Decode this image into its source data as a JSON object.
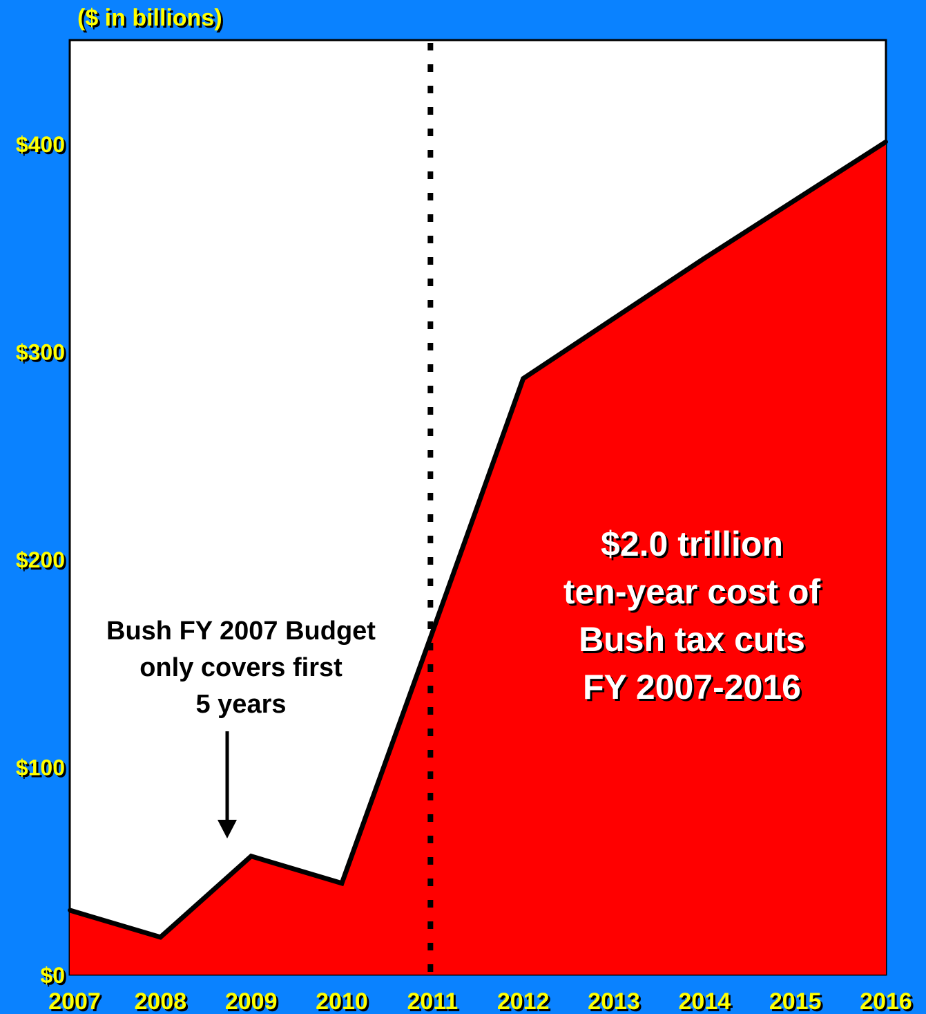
{
  "colors": {
    "background": "#0a82ff",
    "plot_background": "#ffffff",
    "area_fill": "#ff0000",
    "line": "#000000",
    "axis_text": "#ffff00",
    "annotation_text": "#ffffff",
    "note_text": "#000000"
  },
  "chart_data": {
    "type": "area",
    "title": "",
    "ylabel": "($ in billions)",
    "xlabel": "",
    "x": [
      "2007",
      "2008",
      "2009",
      "2010",
      "2011",
      "2012",
      "2013",
      "2014",
      "2015",
      "2016"
    ],
    "series": [
      {
        "values": [
          31,
          18,
          57,
          44,
          165,
          287,
          316,
          345,
          373,
          401
        ]
      }
    ],
    "ylim": [
      0,
      450
    ],
    "yticks": [
      {
        "value": 0,
        "label": "$0"
      },
      {
        "value": 100,
        "label": "$100"
      },
      {
        "value": 200,
        "label": "$200"
      },
      {
        "value": 300,
        "label": "$300"
      },
      {
        "value": 400,
        "label": "$400"
      }
    ],
    "grid": false,
    "divider_at": "2011",
    "annotations": [
      {
        "name": "total-cost-annotation",
        "lines": [
          "$2.0 trillion",
          "ten-year cost of",
          "Bush tax cuts",
          "FY 2007-2016"
        ]
      },
      {
        "name": "budget-coverage-note",
        "lines": [
          "Bush FY 2007 Budget",
          "only covers first",
          "5 years"
        ],
        "arrow_points_to": "2009"
      }
    ]
  }
}
